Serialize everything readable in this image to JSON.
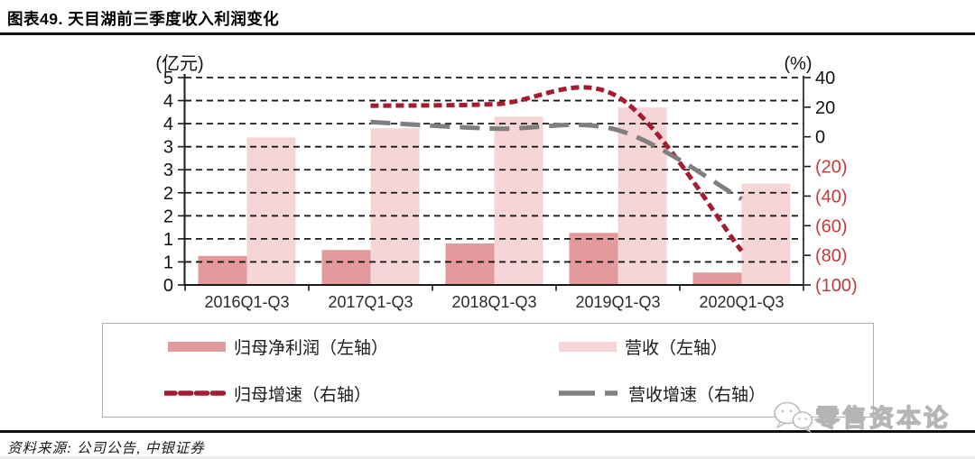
{
  "header": {
    "title": "图表49. 天目湖前三季度收入利润变化"
  },
  "chart_data": {
    "type": "bar",
    "subtype": "combo-bar-line-dual-axis",
    "categories": [
      "2016Q1-Q3",
      "2017Q1-Q3",
      "2018Q1-Q3",
      "2019Q1-Q3",
      "2020Q1-Q3"
    ],
    "series": [
      {
        "name": "归母净利润（左轴）",
        "kind": "bar",
        "axis": "left",
        "color": "#e29a9c",
        "values": [
          0.63,
          0.76,
          0.9,
          1.13,
          0.27
        ]
      },
      {
        "name": "营收（左轴）",
        "kind": "bar",
        "axis": "left",
        "color": "#f5d5d6",
        "values": [
          3.2,
          3.4,
          3.65,
          3.85,
          2.2
        ]
      },
      {
        "name": "归母增速（右轴）",
        "kind": "line",
        "axis": "right",
        "color": "#a51c30",
        "dash": "short",
        "values": [
          null,
          21,
          22,
          27,
          -77
        ]
      },
      {
        "name": "营收增速（右轴）",
        "kind": "line",
        "axis": "right",
        "color": "#7f7f7f",
        "dash": "long",
        "values": [
          null,
          10,
          5.5,
          4.5,
          -42
        ]
      }
    ],
    "left_axis": {
      "unit": "(亿元)",
      "min": 0,
      "max": 4.5,
      "step": 0.5,
      "tick_labels_top_to_bottom": [
        "5",
        "4",
        "4",
        "3",
        "3",
        "2",
        "2",
        "1",
        "1",
        "0"
      ]
    },
    "right_axis": {
      "unit": "(%)",
      "min": -100,
      "max": 40,
      "step": 20,
      "tick_labels_top_to_bottom": [
        "40",
        "20",
        "0",
        "(20)",
        "(40)",
        "(60)",
        "(80)",
        "(100)"
      ],
      "negative_color": "#c53b3b",
      "positive_color": "#111111"
    },
    "grid": "horizontal-dashed",
    "legend_position": "bottom-box"
  },
  "legend": {
    "items": [
      {
        "label": "归母净利润（左轴）",
        "swatch": "bar",
        "color": "#e29a9c"
      },
      {
        "label": "营收（左轴）",
        "swatch": "bar",
        "color": "#f5d5d6"
      },
      {
        "label": "归母增速（右轴）",
        "swatch": "dash-short",
        "color": "#a51c30"
      },
      {
        "label": "营收增速（右轴）",
        "swatch": "dash-long",
        "color": "#7f7f7f"
      }
    ]
  },
  "footer": {
    "source": "资料来源: 公司公告, 中银证券"
  },
  "watermark": {
    "text": "零售资本论",
    "icon": "wechat-bubbles-icon"
  }
}
